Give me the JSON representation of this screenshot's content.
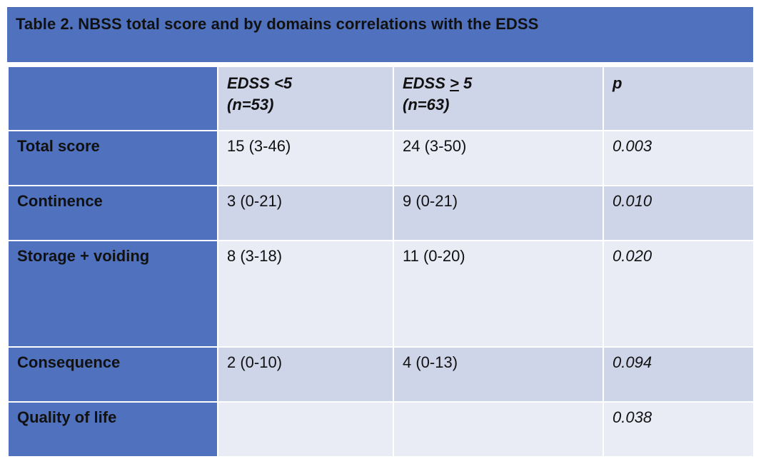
{
  "title": "Table 2. NBSS total score and by domains correlations with the EDSS",
  "columns": {
    "col1_line1": "EDSS <5",
    "col1_line2": "(n=53)",
    "col2_prefix": "EDSS ",
    "col2_symbol": ">",
    "col2_suffix": " 5",
    "col2_line2": "(n=63)",
    "col3": "p"
  },
  "rows": [
    {
      "label": "Total score",
      "edss_lt5": "15 (3-46)",
      "edss_ge5": "24 (3-50)",
      "p": "0.003"
    },
    {
      "label": "Continence",
      "edss_lt5": "3 (0-21)",
      "edss_ge5": "9 (0-21)",
      "p": "0.010"
    },
    {
      "label": "Storage + voiding",
      "edss_lt5": "8 (3-18)",
      "edss_ge5": "11 (0-20)",
      "p": "0.020"
    },
    {
      "label": "Consequence",
      "edss_lt5": "2 (0-10)",
      "edss_ge5": "4 (0-13)",
      "p": "0.094"
    },
    {
      "label": "Quality of life",
      "edss_lt5": "",
      "edss_ge5": "",
      "p": "0.038"
    }
  ]
}
